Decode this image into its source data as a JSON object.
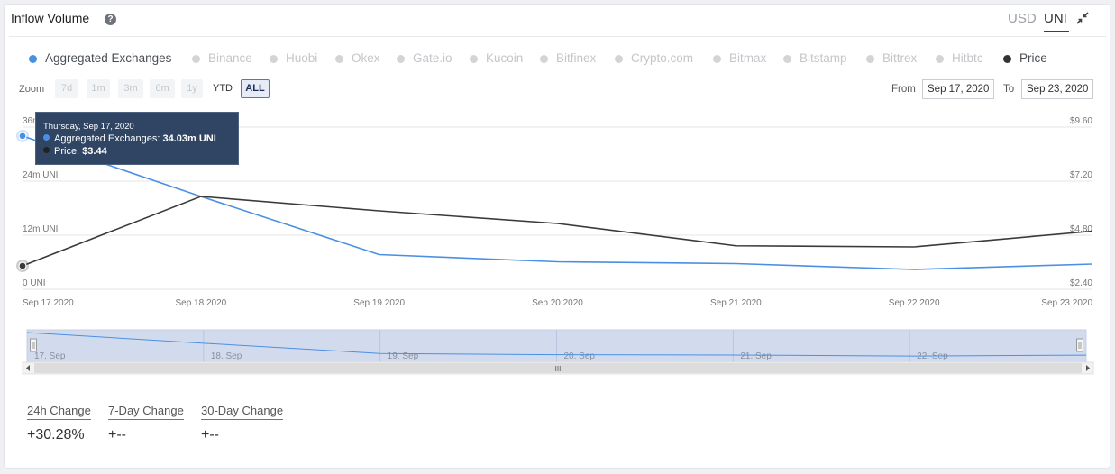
{
  "header": {
    "title": "Inflow Volume",
    "help_icon": "question-circle-icon",
    "currency_usd": "USD",
    "currency_uni": "UNI",
    "collapse_icon": "collapse-arrows-icon"
  },
  "legend": [
    {
      "label": "Aggregated Exchanges",
      "active": true,
      "color": "#4a90e2"
    },
    {
      "label": "Binance",
      "active": false
    },
    {
      "label": "Huobi",
      "active": false
    },
    {
      "label": "Okex",
      "active": false
    },
    {
      "label": "Gate.io",
      "active": false
    },
    {
      "label": "Kucoin",
      "active": false
    },
    {
      "label": "Bitfinex",
      "active": false
    },
    {
      "label": "Crypto.com",
      "active": false
    },
    {
      "label": "Bitmax",
      "active": false
    },
    {
      "label": "Bitstamp",
      "active": false
    },
    {
      "label": "Bittrex",
      "active": false
    },
    {
      "label": "Hitbtc",
      "active": false
    },
    {
      "label": "Price",
      "active": true,
      "color": "#333333"
    }
  ],
  "zoom": {
    "label": "Zoom",
    "buttons": [
      "7d",
      "1m",
      "3m",
      "6m",
      "1y",
      "YTD",
      "ALL"
    ],
    "selected": "ALL"
  },
  "range": {
    "from_label": "From",
    "from": "Sep 17, 2020",
    "to_label": "To",
    "to": "Sep 23, 2020"
  },
  "tooltip": {
    "date": "Thursday, Sep 17, 2020",
    "series_label": "Aggregated Exchanges: ",
    "series_value": "34.03m UNI",
    "price_label": "Price: ",
    "price_value": "$3.44"
  },
  "chart_data": {
    "type": "line",
    "x": [
      "Sep 17 2020",
      "Sep 18 2020",
      "Sep 19 2020",
      "Sep 20 2020",
      "Sep 21 2020",
      "Sep 22 2020",
      "Sep 23 2020"
    ],
    "left_axis": {
      "ticks": [
        "36m UNI",
        "24m UNI",
        "12m UNI",
        "0 UNI"
      ],
      "tick_values": [
        36,
        24,
        12,
        0
      ],
      "ylim": [
        0,
        36
      ]
    },
    "right_axis": {
      "ticks": [
        "$9.60",
        "$7.20",
        "$4.80",
        "$2.40"
      ],
      "tick_values": [
        9.6,
        7.2,
        4.8,
        2.4
      ],
      "ylim": [
        2.4,
        9.6
      ]
    },
    "series": [
      {
        "name": "Aggregated Exchanges",
        "axis": "left",
        "color": "#4a90e2",
        "values": [
          34.03,
          20.6,
          7.7,
          6.1,
          5.7,
          4.4,
          5.6
        ]
      },
      {
        "name": "Price",
        "axis": "right",
        "color": "#3a3a3a",
        "values": [
          3.44,
          6.52,
          5.88,
          5.32,
          4.33,
          4.28,
          4.98
        ]
      }
    ],
    "grid": true
  },
  "navigator": {
    "labels": [
      "17. Sep",
      "18. Sep",
      "19. Sep",
      "20. Sep",
      "21. Sep",
      "22. Sep"
    ],
    "handle_glyph": "III"
  },
  "stats": [
    {
      "label": "24h Change",
      "value": "+30.28%"
    },
    {
      "label": "7-Day Change",
      "value": "+--"
    },
    {
      "label": "30-Day Change",
      "value": "+--"
    }
  ]
}
